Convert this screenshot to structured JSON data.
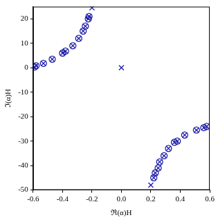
{
  "chart_data": {
    "type": "scatter",
    "x_label": "ℜ(α)H",
    "y_label": "ℑ(α)H",
    "xlim": [
      -0.6,
      0.6
    ],
    "xticks": [
      -0.6,
      -0.4,
      -0.2,
      {
        "value": 0,
        "label": "0.0"
      },
      0.2,
      0.4,
      0.6
    ],
    "ylim": [
      -50,
      25
    ],
    "yticks": [
      -50,
      -40,
      -30,
      -20,
      -10,
      0,
      10,
      20
    ],
    "grid": false,
    "series": [
      {
        "color": "#1a1aa6",
        "marker": "cross",
        "x": [
          -0.59,
          -0.58,
          -0.53,
          -0.47,
          -0.4,
          -0.38,
          -0.33,
          -0.29,
          -0.26,
          -0.245,
          -0.225,
          -0.22,
          -0.2,
          0.0,
          0.2,
          0.22,
          0.23,
          0.25,
          0.26,
          0.29,
          0.32,
          0.36,
          0.38,
          0.43,
          0.51,
          0.56,
          0.58
        ],
        "values": [
          0.3,
          0.8,
          1.8,
          3.5,
          6,
          6.8,
          9,
          12,
          15,
          17,
          20,
          21,
          24.5,
          0,
          -48,
          -45,
          -43,
          -41,
          -38.5,
          -36,
          -33,
          -30.5,
          -30,
          -27.5,
          -25.5,
          -24.5,
          -24
        ]
      },
      {
        "color": "#1a1aa6",
        "marker": "circle",
        "x": [
          -0.59,
          -0.58,
          -0.53,
          -0.47,
          -0.4,
          -0.38,
          -0.33,
          -0.29,
          -0.26,
          -0.245,
          -0.225,
          -0.22,
          0.22,
          0.23,
          0.25,
          0.26,
          0.29,
          0.32,
          0.36,
          0.38,
          0.43,
          0.51,
          0.56,
          0.58
        ],
        "values": [
          0.3,
          0.8,
          1.8,
          3.5,
          6,
          6.8,
          9,
          12,
          15,
          17,
          20,
          21,
          -45,
          -43,
          -41,
          -38.5,
          -36,
          -33,
          -30.5,
          -30,
          -27.5,
          -25.5,
          -24.5,
          -24
        ]
      }
    ]
  }
}
